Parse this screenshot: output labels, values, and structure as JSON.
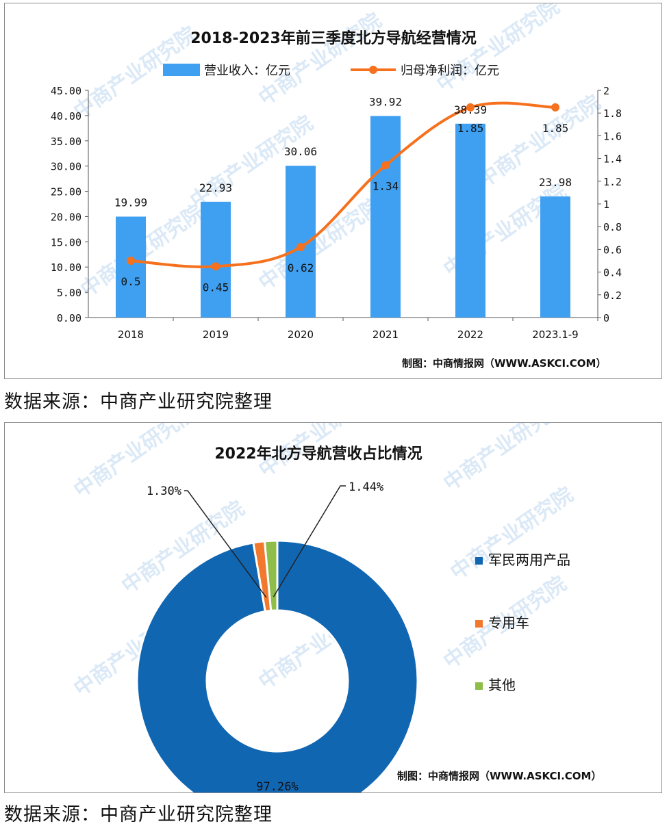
{
  "chart_data": [
    {
      "type": "bar",
      "title": "2018-2023年前三季度北方导航经营情况",
      "categories": [
        "2018",
        "2019",
        "2020",
        "2021",
        "2022",
        "2023.1-9"
      ],
      "series": [
        {
          "name": "营业收入：亿元",
          "type": "bar",
          "axis": "left",
          "values": [
            19.99,
            22.93,
            30.06,
            39.92,
            38.39,
            23.98
          ],
          "labels": [
            "19.99",
            "22.93",
            "30.06",
            "39.92",
            "38.39",
            "23.98"
          ],
          "color": "#3fa0f2"
        },
        {
          "name": "归母净利润：亿元",
          "type": "line",
          "axis": "right",
          "values": [
            0.5,
            0.45,
            0.62,
            1.34,
            1.85,
            1.85
          ],
          "labels": [
            "0.5",
            "0.45",
            "0.62",
            "1.34",
            "1.85",
            "1.85"
          ],
          "color": "#f6711d"
        }
      ],
      "y_left": {
        "min": 0,
        "max": 45,
        "ticks": [
          "0.00",
          "5.00",
          "10.00",
          "15.00",
          "20.00",
          "25.00",
          "30.00",
          "35.00",
          "40.00",
          "45.00"
        ]
      },
      "y_right": {
        "min": 0,
        "max": 2,
        "ticks": [
          "0",
          "0.2",
          "0.4",
          "0.6",
          "0.8",
          "1",
          "1.2",
          "1.4",
          "1.6",
          "1.8",
          "2"
        ]
      },
      "legend_position": "top",
      "credit": "制图：中商情报网（WWW.ASKCI.COM）"
    },
    {
      "type": "pie",
      "donut": true,
      "title": "2022年北方导航营收占比情况",
      "slices": [
        {
          "name": "军民两用产品",
          "value": 97.26,
          "label": "97.26%",
          "color": "#1166b2"
        },
        {
          "name": "专用车",
          "value": 1.3,
          "label": "1.30%",
          "color": "#f1782c"
        },
        {
          "name": "其他",
          "value": 1.44,
          "label": "1.44%",
          "color": "#8ebd4a"
        }
      ],
      "legend_position": "right",
      "credit": "制图：中商情报网（WWW.ASKCI.COM）"
    }
  ],
  "source_note": "数据来源：中商产业研究院整理",
  "watermark": "中商产业研究院"
}
